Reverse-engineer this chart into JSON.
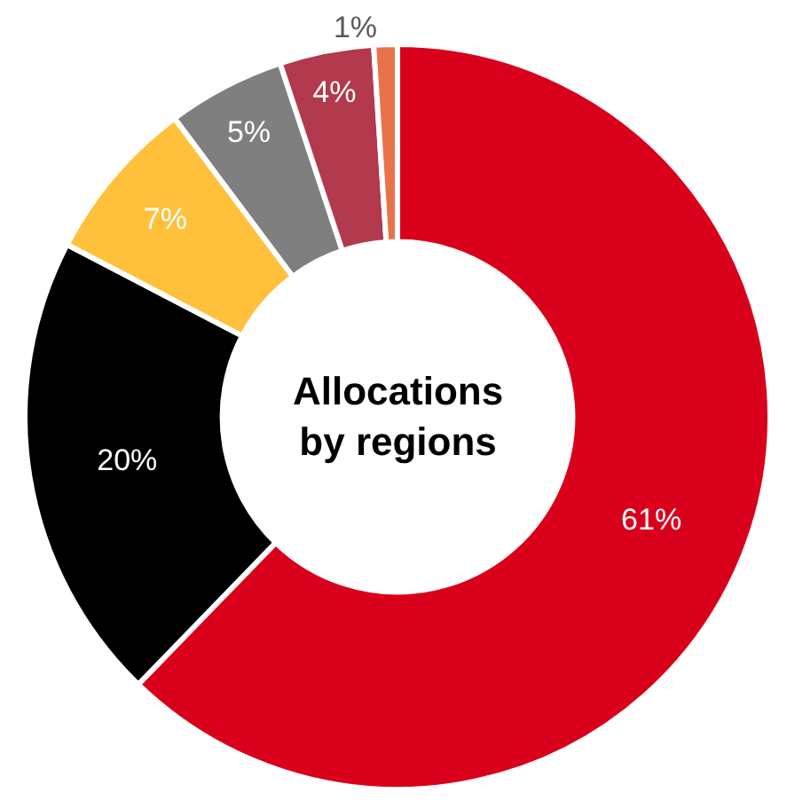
{
  "chart_data": {
    "type": "donut",
    "title": "Allocations by regions",
    "categories": [
      null,
      null,
      null,
      null,
      null,
      null
    ],
    "values": [
      61,
      20,
      7,
      5,
      4,
      1
    ],
    "colors": [
      "#d9001b",
      "#000000",
      "#ffc13b",
      "#7f7f7f",
      "#b3394d",
      "#e8734a"
    ],
    "value_labels": [
      "61%",
      "20%",
      "7%",
      "5%",
      "4%",
      "1%"
    ],
    "legend": false
  }
}
